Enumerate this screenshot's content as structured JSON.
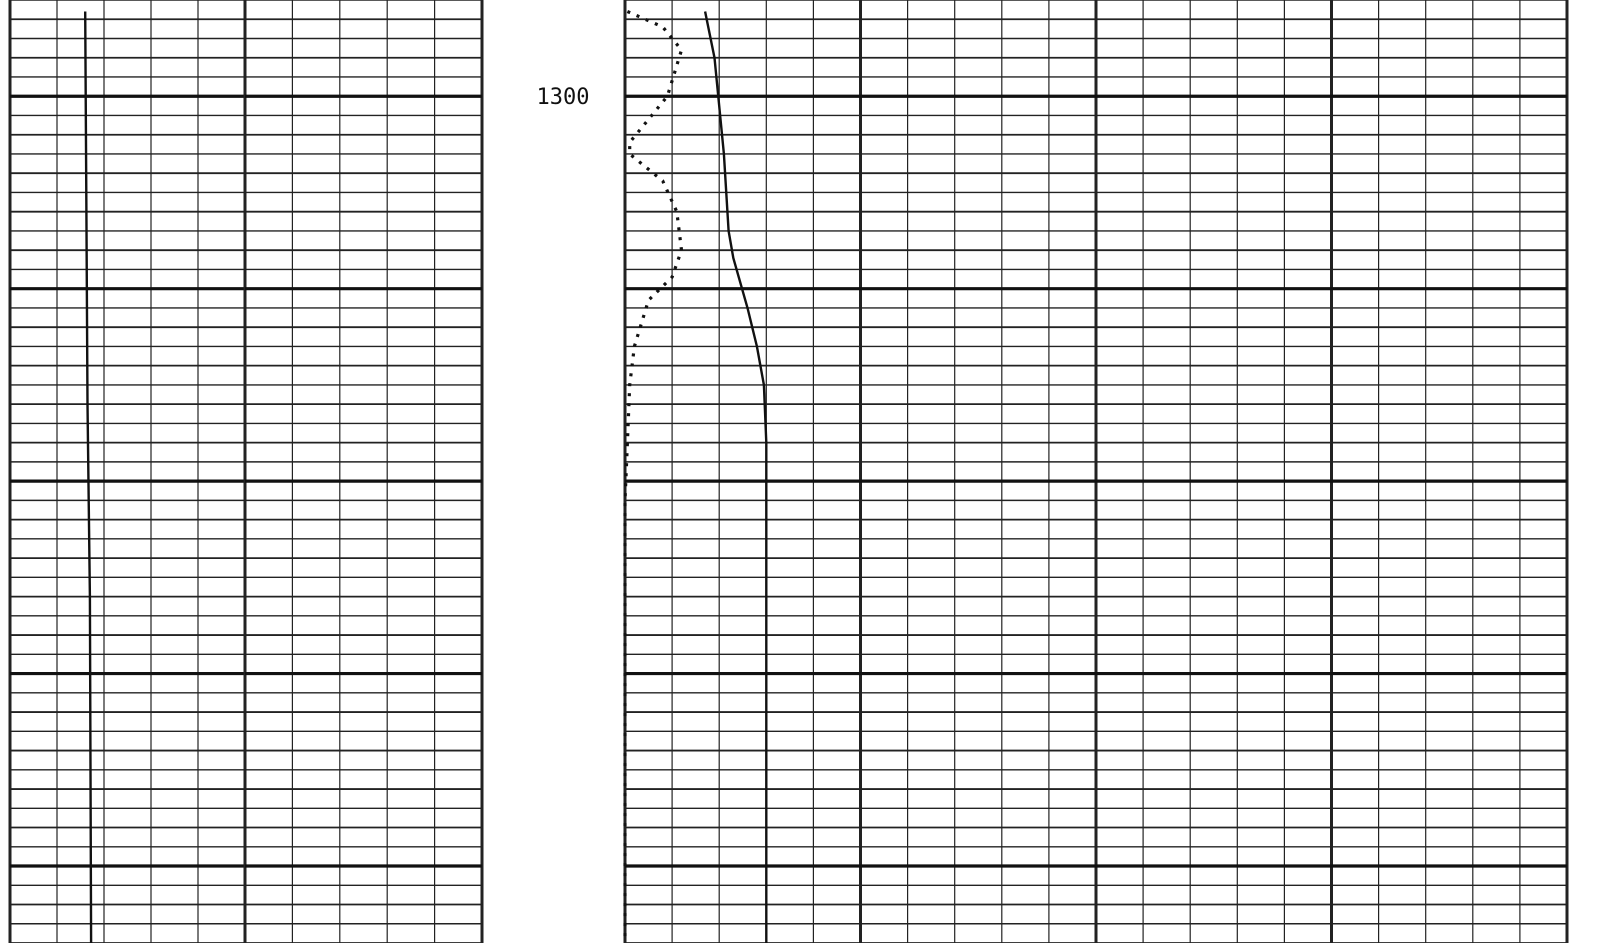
{
  "chart_data": {
    "type": "line",
    "depth_axis": {
      "label": "1300",
      "label_depth": 1300,
      "depth_range": [
        1297.5,
        1322.0
      ]
    },
    "tracks": [
      {
        "scale": [
          0,
          10
        ],
        "series": [
          {
            "style": "solid",
            "points": [
              [
                3.2,
                1297.8
              ],
              [
                3.25,
                1303
              ],
              [
                3.3,
                1308
              ],
              [
                3.4,
                1313
              ],
              [
                3.45,
                1322
              ]
            ]
          }
        ]
      },
      {
        "scale": [
          0,
          20
        ]
      },
      {
        "scale": [
          0,
          20
        ],
        "series": [
          {
            "style": "solid",
            "points": [
              [
                1.7,
                1297.8
              ],
              [
                1.9,
                1299
              ],
              [
                2.1,
                1301.5
              ],
              [
                2.2,
                1303.5
              ],
              [
                2.3,
                1304.2
              ],
              [
                2.6,
                1305.5
              ],
              [
                2.8,
                1306.5
              ],
              [
                2.95,
                1307.5
              ],
              [
                3.0,
                1309
              ],
              [
                3.0,
                1322
              ]
            ]
          },
          {
            "style": "dotted",
            "points": [
              [
                0.05,
                1297.8
              ],
              [
                0.8,
                1298.2
              ],
              [
                1.2,
                1298.8
              ],
              [
                0.9,
                1300
              ],
              [
                0.1,
                1301.2
              ],
              [
                0.1,
                1301.5
              ],
              [
                0.8,
                1302.2
              ],
              [
                1.1,
                1303
              ],
              [
                1.2,
                1304
              ],
              [
                1.0,
                1304.7
              ],
              [
                0.5,
                1305.3
              ],
              [
                0.2,
                1306.5
              ],
              [
                0.1,
                1307.5
              ],
              [
                0.05,
                1309
              ],
              [
                0.0,
                1310.5
              ],
              [
                0.0,
                1322
              ]
            ]
          }
        ]
      }
    ],
    "grid": true
  }
}
